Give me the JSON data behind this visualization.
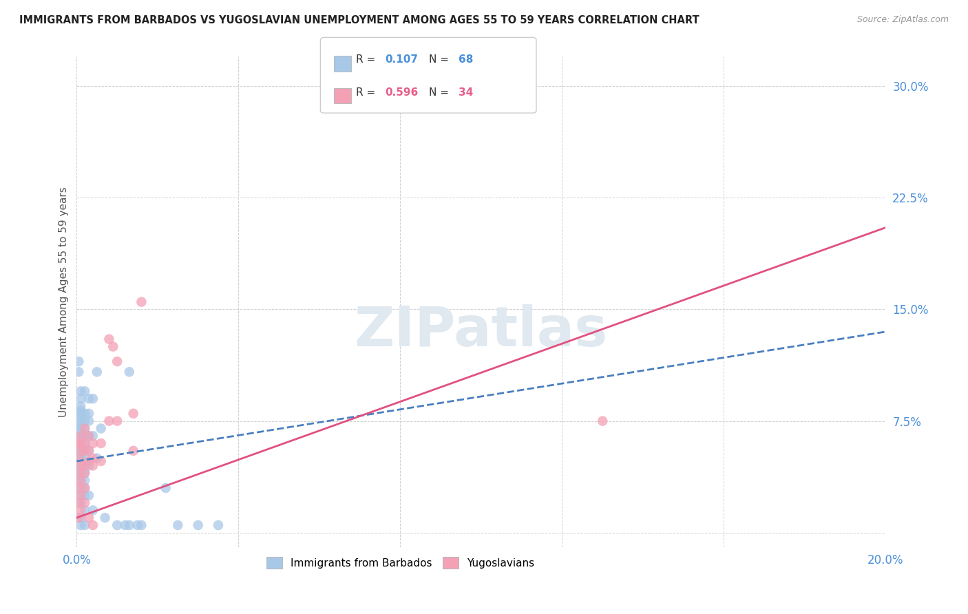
{
  "title": "IMMIGRANTS FROM BARBADOS VS YUGOSLAVIAN UNEMPLOYMENT AMONG AGES 55 TO 59 YEARS CORRELATION CHART",
  "source": "Source: ZipAtlas.com",
  "ylabel": "Unemployment Among Ages 55 to 59 years",
  "xlim": [
    0.0,
    0.2
  ],
  "ylim": [
    -0.01,
    0.32
  ],
  "x_ticks": [
    0.0,
    0.04,
    0.08,
    0.12,
    0.16,
    0.2
  ],
  "y_ticks": [
    0.0,
    0.075,
    0.15,
    0.225,
    0.3
  ],
  "blue_color": "#a8c8e8",
  "pink_color": "#f4a0b5",
  "blue_line_color": "#4a7fc1",
  "pink_line_color": "#e05080",
  "blue_scatter": [
    [
      0.0005,
      0.115
    ],
    [
      0.0005,
      0.108
    ],
    [
      0.001,
      0.095
    ],
    [
      0.001,
      0.09
    ],
    [
      0.001,
      0.085
    ],
    [
      0.001,
      0.082
    ],
    [
      0.001,
      0.08
    ],
    [
      0.001,
      0.078
    ],
    [
      0.001,
      0.075
    ],
    [
      0.001,
      0.072
    ],
    [
      0.001,
      0.07
    ],
    [
      0.001,
      0.068
    ],
    [
      0.001,
      0.065
    ],
    [
      0.001,
      0.062
    ],
    [
      0.001,
      0.06
    ],
    [
      0.001,
      0.058
    ],
    [
      0.001,
      0.055
    ],
    [
      0.001,
      0.052
    ],
    [
      0.001,
      0.05
    ],
    [
      0.001,
      0.048
    ],
    [
      0.001,
      0.045
    ],
    [
      0.001,
      0.042
    ],
    [
      0.001,
      0.038
    ],
    [
      0.001,
      0.035
    ],
    [
      0.001,
      0.03
    ],
    [
      0.001,
      0.025
    ],
    [
      0.001,
      0.02
    ],
    [
      0.001,
      0.01
    ],
    [
      0.001,
      0.005
    ],
    [
      0.002,
      0.095
    ],
    [
      0.002,
      0.08
    ],
    [
      0.002,
      0.075
    ],
    [
      0.002,
      0.07
    ],
    [
      0.002,
      0.065
    ],
    [
      0.002,
      0.06
    ],
    [
      0.002,
      0.055
    ],
    [
      0.002,
      0.05
    ],
    [
      0.002,
      0.045
    ],
    [
      0.002,
      0.04
    ],
    [
      0.002,
      0.035
    ],
    [
      0.002,
      0.03
    ],
    [
      0.002,
      0.025
    ],
    [
      0.002,
      0.015
    ],
    [
      0.002,
      0.005
    ],
    [
      0.003,
      0.09
    ],
    [
      0.003,
      0.08
    ],
    [
      0.003,
      0.075
    ],
    [
      0.003,
      0.065
    ],
    [
      0.003,
      0.055
    ],
    [
      0.003,
      0.045
    ],
    [
      0.003,
      0.025
    ],
    [
      0.004,
      0.09
    ],
    [
      0.004,
      0.065
    ],
    [
      0.004,
      0.015
    ],
    [
      0.005,
      0.108
    ],
    [
      0.005,
      0.05
    ],
    [
      0.006,
      0.07
    ],
    [
      0.007,
      0.01
    ],
    [
      0.01,
      0.005
    ],
    [
      0.012,
      0.005
    ],
    [
      0.013,
      0.108
    ],
    [
      0.013,
      0.005
    ],
    [
      0.015,
      0.005
    ],
    [
      0.016,
      0.005
    ],
    [
      0.022,
      0.03
    ],
    [
      0.025,
      0.005
    ],
    [
      0.03,
      0.005
    ],
    [
      0.035,
      0.005
    ]
  ],
  "pink_scatter": [
    [
      0.0005,
      0.06
    ],
    [
      0.0005,
      0.05
    ],
    [
      0.0005,
      0.04
    ],
    [
      0.0005,
      0.03
    ],
    [
      0.0005,
      0.02
    ],
    [
      0.0005,
      0.01
    ],
    [
      0.001,
      0.065
    ],
    [
      0.001,
      0.06
    ],
    [
      0.001,
      0.055
    ],
    [
      0.001,
      0.045
    ],
    [
      0.001,
      0.035
    ],
    [
      0.001,
      0.025
    ],
    [
      0.001,
      0.015
    ],
    [
      0.002,
      0.07
    ],
    [
      0.002,
      0.06
    ],
    [
      0.002,
      0.055
    ],
    [
      0.002,
      0.045
    ],
    [
      0.002,
      0.04
    ],
    [
      0.002,
      0.03
    ],
    [
      0.002,
      0.02
    ],
    [
      0.003,
      0.065
    ],
    [
      0.003,
      0.055
    ],
    [
      0.003,
      0.048
    ],
    [
      0.003,
      0.01
    ],
    [
      0.004,
      0.06
    ],
    [
      0.004,
      0.05
    ],
    [
      0.004,
      0.045
    ],
    [
      0.004,
      0.005
    ],
    [
      0.006,
      0.06
    ],
    [
      0.006,
      0.048
    ],
    [
      0.008,
      0.075
    ],
    [
      0.008,
      0.13
    ],
    [
      0.009,
      0.125
    ],
    [
      0.01,
      0.115
    ],
    [
      0.01,
      0.075
    ],
    [
      0.014,
      0.08
    ],
    [
      0.014,
      0.055
    ],
    [
      0.016,
      0.155
    ],
    [
      0.13,
      0.075
    ]
  ],
  "blue_line": {
    "x0": 0.0,
    "y0": 0.048,
    "x1": 0.2,
    "y1": 0.135
  },
  "pink_line": {
    "x0": 0.0,
    "y0": 0.01,
    "x1": 0.2,
    "y1": 0.205
  },
  "watermark": "ZIPatlas",
  "background_color": "#ffffff",
  "grid_color": "#d0d0d0"
}
